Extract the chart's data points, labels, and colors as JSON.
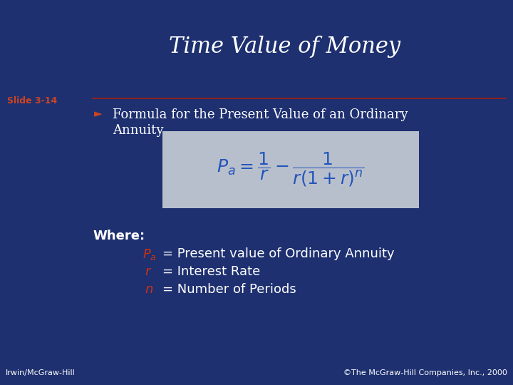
{
  "title": "Time Value of Money",
  "slide_label": "Slide 3-14",
  "bullet_text_line1": "Formula for the Present Value of an Ordinary",
  "bullet_text_line2": "Annuity",
  "where_label": "Where:",
  "pa_desc": "= Present value of Ordinary Annuity",
  "r_desc": "= Interest Rate",
  "n_desc": "= Number of Periods",
  "footer_left": "Irwin/McGraw-Hill",
  "footer_right": "©The McGraw-Hill Companies, Inc., 2000",
  "bg_color": "#1e3070",
  "title_color": "#ffffff",
  "slide_label_color": "#cc4422",
  "divider_color": "#882222",
  "bullet_arrow_color": "#cc4422",
  "bullet_color": "#ffffff",
  "formula_bg": "#b8bfcc",
  "formula_color": "#2255bb",
  "where_color": "#ffffff",
  "var_color": "#cc3311",
  "desc_color": "#ffffff",
  "footer_color": "#ffffff",
  "title_fontsize": 22,
  "label_fontsize": 9,
  "bullet_fontsize": 13,
  "formula_fontsize": 18,
  "where_fontsize": 13,
  "footer_fontsize": 8
}
